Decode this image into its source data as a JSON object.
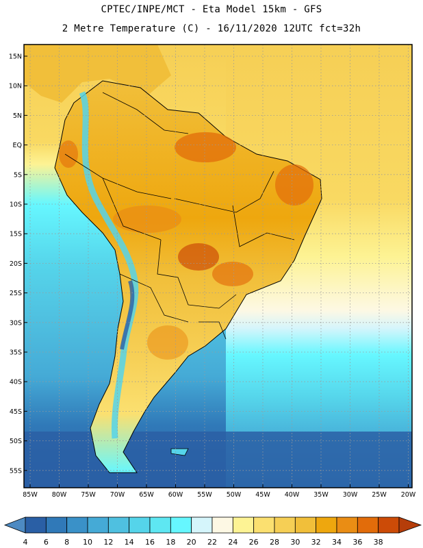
{
  "header": {
    "line1": "CPTEC/INPE/MCT -  Eta Model 15km - GFS",
    "line2": "2 Metre Temperature (C) - 16/11/2020 12UTC fct=32h"
  },
  "map": {
    "lat_labels": [
      "15N",
      "10N",
      "5N",
      "EQ",
      "5S",
      "10S",
      "15S",
      "20S",
      "25S",
      "30S",
      "35S",
      "40S",
      "45S",
      "50S",
      "55S"
    ],
    "lon_labels": [
      "85W",
      "80W",
      "75W",
      "70W",
      "65W",
      "60W",
      "55W",
      "50W",
      "45W",
      "40W",
      "35W",
      "30W",
      "25W",
      "20W"
    ]
  },
  "colorbar": {
    "labels": [
      "4",
      "6",
      "8",
      "10",
      "12",
      "14",
      "16",
      "18",
      "20",
      "22",
      "24",
      "26",
      "28",
      "30",
      "32",
      "34",
      "36",
      "38"
    ],
    "colors": [
      "#2a5fa5",
      "#3079b8",
      "#3a91c8",
      "#45aad6",
      "#4fc0e0",
      "#55d4ea",
      "#5ee7f2",
      "#66f7ff",
      "#d5f5fb",
      "#fdf8e4",
      "#fdf394",
      "#fbe070",
      "#f6cf55",
      "#f1bf3a",
      "#eea70e",
      "#ea8d14",
      "#e26c0a",
      "#cc4b07"
    ],
    "min_color": "#4d8ac2",
    "max_color": "#b53d0a"
  }
}
